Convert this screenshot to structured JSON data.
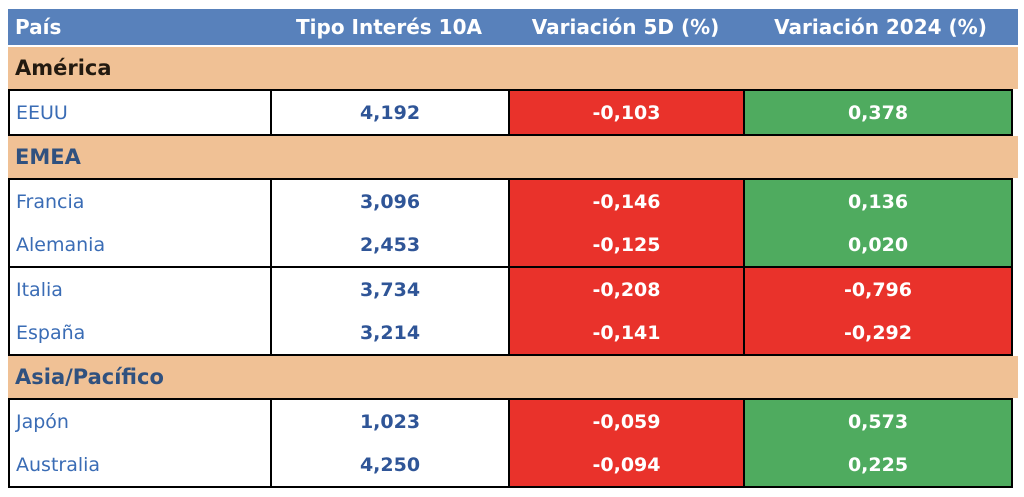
{
  "chart_data": {
    "type": "table",
    "columns": [
      "País",
      "Tipo Interés 10A",
      "Variación 5D (%)",
      "Variación 2024 (%)"
    ],
    "sections": [
      {
        "name": "América",
        "title_color": "#231a10",
        "row_groups": [
          [
            {
              "country": "EEUU",
              "rate": "4,192",
              "var_5d": "-0,103",
              "var_2024": "0,378"
            }
          ]
        ]
      },
      {
        "name": "EMEA",
        "title_color": "#30517f",
        "row_groups": [
          [
            {
              "country": "Francia",
              "rate": "3,096",
              "var_5d": "-0,146",
              "var_2024": "0,136"
            },
            {
              "country": "Alemania",
              "rate": "2,453",
              "var_5d": "-0,125",
              "var_2024": "0,020"
            }
          ],
          [
            {
              "country": "Italia",
              "rate": "3,734",
              "var_5d": "-0,208",
              "var_2024": "-0,796"
            },
            {
              "country": "España",
              "rate": "3,214",
              "var_5d": "-0,141",
              "var_2024": "-0,292"
            }
          ]
        ]
      },
      {
        "name": "Asia/Pacífico",
        "title_color": "#30517f",
        "row_groups": [
          [
            {
              "country": "Japón",
              "rate": "1,023",
              "var_5d": "-0,059",
              "var_2024": "0,573"
            },
            {
              "country": "Australia",
              "rate": "4,250",
              "var_5d": "-0,094",
              "var_2024": "0,225"
            }
          ]
        ]
      }
    ]
  },
  "colors": {
    "header_bg": "#5881BB",
    "header_text": "#FFFFFF",
    "section_bg": "#F0C195",
    "negative_bg": "#E9322B",
    "positive_bg": "#4FAB5F",
    "country_text": "#3A6CB5",
    "rate_text": "#2F5597",
    "border": "#000000"
  }
}
